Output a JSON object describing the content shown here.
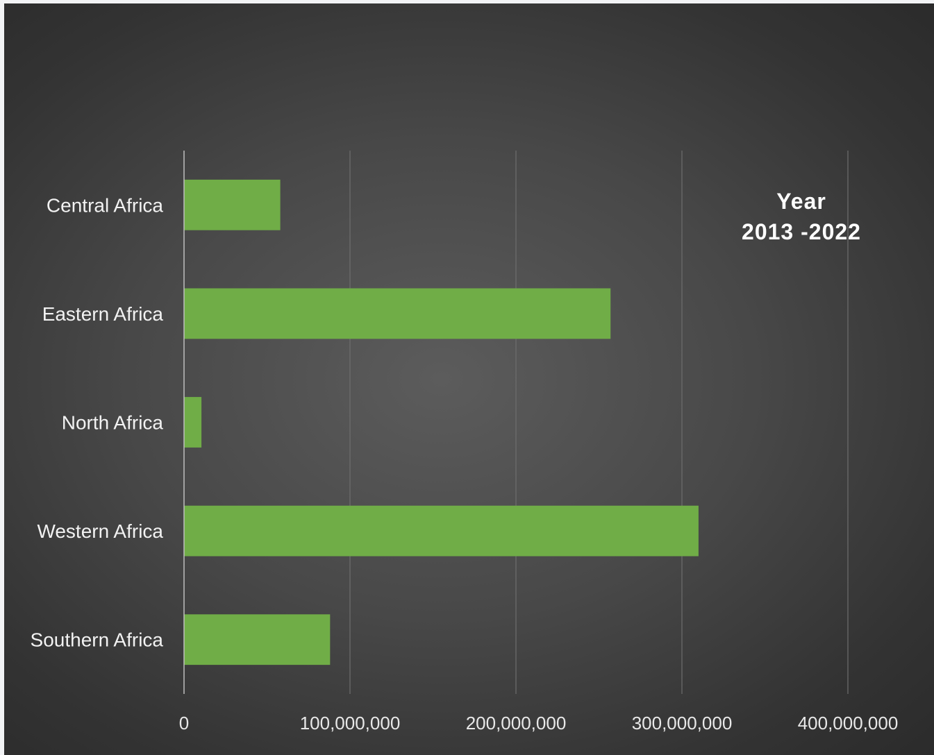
{
  "chart_data": {
    "type": "bar",
    "orientation": "horizontal",
    "categories": [
      "Central Africa",
      "Eastern Africa",
      "North Africa",
      "Western Africa",
      "Southern Africa"
    ],
    "values": [
      58000000,
      257000000,
      10500000,
      310000000,
      88000000
    ],
    "xlim": [
      0,
      400000000
    ],
    "xticks": [
      0,
      100000000,
      200000000,
      300000000,
      400000000
    ],
    "xtick_labels": [
      "0",
      "100,000,000",
      "200,000,000",
      "300,000,000",
      "400,000,000"
    ],
    "annotation": [
      "Year",
      "2013 -2022"
    ],
    "grid": "vertical",
    "bar_color": "#70ad47",
    "background": "dark-gradient"
  }
}
